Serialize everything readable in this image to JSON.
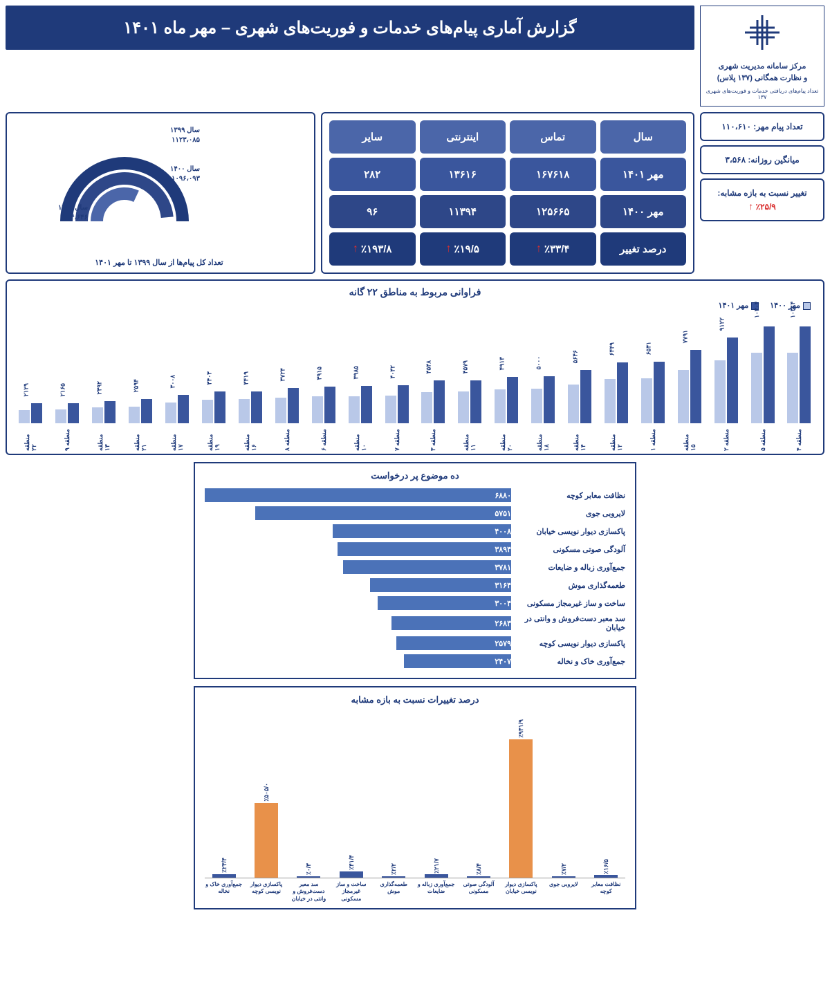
{
  "colors": {
    "primary": "#1f3a7a",
    "cell_header": "#4b66a9",
    "cell_data1": "#3a569d",
    "cell_data2": "#2e4788",
    "cell_pct": "#1f3a7a",
    "arrow_up": "#d92f2f",
    "bar_light": "#b9c8e8",
    "bar_dark": "#3a569d",
    "hbar_fill": "#4b72b8",
    "pct_orange": "#e8914a",
    "pct_blue": "#3a569d"
  },
  "header": {
    "org_line1": "مرکز سامانه مدیریت شهری",
    "org_line2": "و نظارت همگانی (۱۳۷ پلاس)",
    "org_sub": "تعداد پیام‌های دریافتی خدمات و فوریت‌های شهری ۱۳۷",
    "title": "گزارش آماری پیام‌های خدمات و فوریت‌های شهری – مهر ماه ۱۴۰۱"
  },
  "kpi": [
    {
      "label": "تعداد پیام مهر: ۱۱۰،۶۱۰"
    },
    {
      "label": "میانگین روزانه: ۳،۵۶۸"
    },
    {
      "label_pre": "تغییر نسبت به بازه مشابه:",
      "value": "٪۲۵/۹",
      "arrow": true
    }
  ],
  "table": {
    "headers": [
      "سال",
      "تماس",
      "اینترنتی",
      "سایر"
    ],
    "rows": [
      {
        "bg": "cell_data1",
        "cells": [
          "مهر ۱۴۰۱",
          "۱۶۷۶۱۸",
          "۱۳۶۱۶",
          "۲۸۲"
        ]
      },
      {
        "bg": "cell_data2",
        "cells": [
          "مهر ۱۴۰۰",
          "۱۲۵۶۶۵",
          "۱۱۳۹۴",
          "۹۶"
        ]
      },
      {
        "bg": "cell_pct",
        "arrow": true,
        "cells": [
          "درصد تغییر",
          "٪۳۳/۴",
          "٪۱۹/۵",
          "٪۱۹۳/۸"
        ]
      }
    ]
  },
  "arc": {
    "caption": "تعداد کل پیام‌ها از سال ۱۳۹۹ تا مهر ۱۴۰۱",
    "rings": [
      {
        "label1": "سال ۱۳۹۹",
        "label2": "۱۱۲۳،۰۸۵",
        "color": "#1f3a7a",
        "radius": 84,
        "frac": 1.0
      },
      {
        "label1": "سال ۱۴۰۰",
        "label2": "۱۰۹۶،۰۹۳",
        "color": "#2e4788",
        "radius": 62,
        "frac": 0.97
      },
      {
        "label1": "سال ۱۴۰۱",
        "label2": "۷۱۴،۶۴۶",
        "color": "#4b66a9",
        "radius": 40,
        "frac": 0.64
      }
    ]
  },
  "bar22": {
    "title": "فراوانی مربوط به مناطق ۲۲ گانه",
    "legend": [
      {
        "label": "مهر ۱۴۰۰",
        "color": "#b9c8e8"
      },
      {
        "label": "مهر ۱۴۰۱",
        "color": "#3a569d"
      }
    ],
    "max": 10304,
    "groups": [
      {
        "cat": "منطقه ۲۲",
        "a": 1400,
        "b": 2129,
        "lbl": "۲۱۲۹"
      },
      {
        "cat": "منطقه ۹",
        "a": 1500,
        "b": 2165,
        "lbl": "۲۱۶۵"
      },
      {
        "cat": "منطقه ۱۳",
        "a": 1700,
        "b": 2392,
        "lbl": "۲۳۹۲"
      },
      {
        "cat": "منطقه ۲۱",
        "a": 1800,
        "b": 2594,
        "lbl": "۲۵۹۴"
      },
      {
        "cat": "منطقه ۱۷",
        "a": 2200,
        "b": 3008,
        "lbl": "۳۰۰۸"
      },
      {
        "cat": "منطقه ۱۹",
        "a": 2500,
        "b": 3403,
        "lbl": "۳۴۰۳"
      },
      {
        "cat": "منطقه ۱۶",
        "a": 2550,
        "b": 3419,
        "lbl": "۳۴۱۹"
      },
      {
        "cat": "منطقه ۸",
        "a": 2700,
        "b": 3724,
        "lbl": "۳۷۲۴"
      },
      {
        "cat": "منطقه ۶",
        "a": 2850,
        "b": 3915,
        "lbl": "۳۹۱۵"
      },
      {
        "cat": "منطقه ۱۰",
        "a": 2900,
        "b": 3985,
        "lbl": "۳۹۸۵"
      },
      {
        "cat": "منطقه ۷",
        "a": 2950,
        "b": 4042,
        "lbl": "۴۰۴۲"
      },
      {
        "cat": "منطقه ۳",
        "a": 3300,
        "b": 4548,
        "lbl": "۴۵۴۸"
      },
      {
        "cat": "منطقه ۱۱",
        "a": 3350,
        "b": 4579,
        "lbl": "۴۵۷۹"
      },
      {
        "cat": "منطقه ۲۰",
        "a": 3600,
        "b": 4913,
        "lbl": "۴۹۱۳"
      },
      {
        "cat": "منطقه ۱۸",
        "a": 3650,
        "b": 5000,
        "lbl": "۵۰۰۰"
      },
      {
        "cat": "منطقه ۱۴",
        "a": 4100,
        "b": 5646,
        "lbl": "۵۶۴۶"
      },
      {
        "cat": "منطقه ۱۲",
        "a": 4700,
        "b": 6449,
        "lbl": "۶۴۴۹"
      },
      {
        "cat": "منطقه ۱",
        "a": 4800,
        "b": 6541,
        "lbl": "۶۵۴۱"
      },
      {
        "cat": "منطقه ۱۵",
        "a": 5700,
        "b": 7791,
        "lbl": "۷۷۹۱"
      },
      {
        "cat": "منطقه ۲",
        "a": 6700,
        "b": 9122,
        "lbl": "۹۱۲۲"
      },
      {
        "cat": "منطقه ۵",
        "a": 7500,
        "b": 10304,
        "lbl": "۱۰۳۰۴"
      },
      {
        "cat": "منطقه ۴",
        "a": 7500,
        "b": 10304,
        "lbl": "۱۰۳۰۴"
      }
    ]
  },
  "hbar": {
    "title": "ده موضوع پر درخواست",
    "max": 6880,
    "rows": [
      {
        "label": "نظافت معابر کوچه",
        "val": 6880,
        "lbl": "۶۸۸۰"
      },
      {
        "label": "لایروبی جوی",
        "val": 5751,
        "lbl": "۵۷۵۱"
      },
      {
        "label": "پاکسازی دیوار نویسی خیابان",
        "val": 4008,
        "lbl": "۴۰۰۸"
      },
      {
        "label": "آلودگی صوتی مسکونی",
        "val": 3894,
        "lbl": "۳۸۹۴"
      },
      {
        "label": "جمع‌آوری زباله و ضایعات",
        "val": 3781,
        "lbl": "۳۷۸۱"
      },
      {
        "label": "طعمه‌گذاری موش",
        "val": 3164,
        "lbl": "۳۱۶۴"
      },
      {
        "label": "ساخت و ساز غیرمجاز مسکونی",
        "val": 3004,
        "lbl": "۳۰۰۴"
      },
      {
        "label": "سد معبر دست‌فروش و وانتی در خیابان",
        "val": 2683,
        "lbl": "۲۶۸۳"
      },
      {
        "label": "پاکسازی دیوار نویسی کوچه",
        "val": 2579,
        "lbl": "۲۵۷۹"
      },
      {
        "label": "جمع‌آوری خاک و نخاله",
        "val": 2407,
        "lbl": "۲۴۰۷"
      }
    ]
  },
  "pct": {
    "title": "درصد تغییرات نسبت به بازه مشابه",
    "max": 931.9,
    "bars": [
      {
        "label": "جمع‌آوری خاک و نخاله",
        "val": 23.4,
        "lbl": "٪۲۳/۴",
        "highlight": false
      },
      {
        "label": "پاکسازی دیوار نویسی کوچه",
        "val": 505.0,
        "lbl": "٪۵۰۵/۰",
        "highlight": true
      },
      {
        "label": "سد معبر دست‌فروش و وانتی در خیابان",
        "val": 0.3,
        "lbl": "٪۰/۳",
        "highlight": false
      },
      {
        "label": "ساخت و ساز غیرمجاز مسکونی",
        "val": 41.4,
        "lbl": "٪۴۱/۴",
        "highlight": false
      },
      {
        "label": "طعمه‌گذاری موش",
        "val": 2.2,
        "lbl": "٪۲/۲",
        "highlight": false
      },
      {
        "label": "جمع‌آوری زباله و ضایعات",
        "val": 21.7,
        "lbl": "٪۲۱/۷",
        "highlight": false
      },
      {
        "label": "آلودگی صوتی مسکونی",
        "val": 8.4,
        "lbl": "٪۸/۴",
        "highlight": false
      },
      {
        "label": "پاکسازی دیوار نویسی خیابان",
        "val": 931.9,
        "lbl": "٪۹۳۱/۹",
        "highlight": true
      },
      {
        "label": "لایروبی جوی",
        "val": 7.2,
        "lbl": "٪۷/۲",
        "highlight": false
      },
      {
        "label": "نظافت معابر کوچه",
        "val": 16.5,
        "lbl": "٪۱۶/۵",
        "highlight": false
      }
    ]
  }
}
